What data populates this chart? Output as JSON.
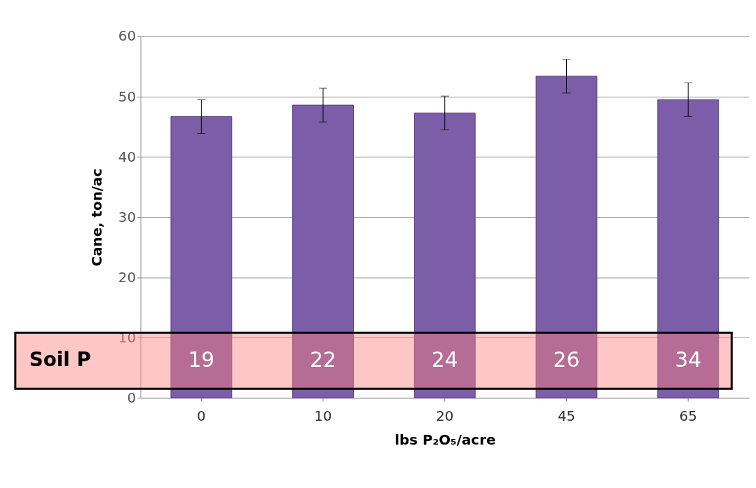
{
  "chart_data": {
    "type": "bar",
    "xlabel": "lbs P₂O₅/acre",
    "ylabel": "Cane, ton/ac",
    "categories": [
      "0",
      "10",
      "20",
      "45",
      "65"
    ],
    "values": [
      46.7,
      48.6,
      47.3,
      53.4,
      49.5
    ],
    "errors": [
      2.8,
      2.8,
      2.8,
      2.8,
      2.8
    ],
    "color": "#7b5ea7",
    "ylim": [
      0,
      60
    ],
    "yticks": [
      0,
      10,
      20,
      30,
      40,
      50,
      60
    ],
    "grid": "y",
    "bands": [
      {
        "axis": "y",
        "from": 1.5,
        "to": 10.8,
        "label": "Soil P",
        "color": "#ff8080"
      }
    ],
    "annotations": [
      "19",
      "22",
      "24",
      "26",
      "34"
    ]
  }
}
